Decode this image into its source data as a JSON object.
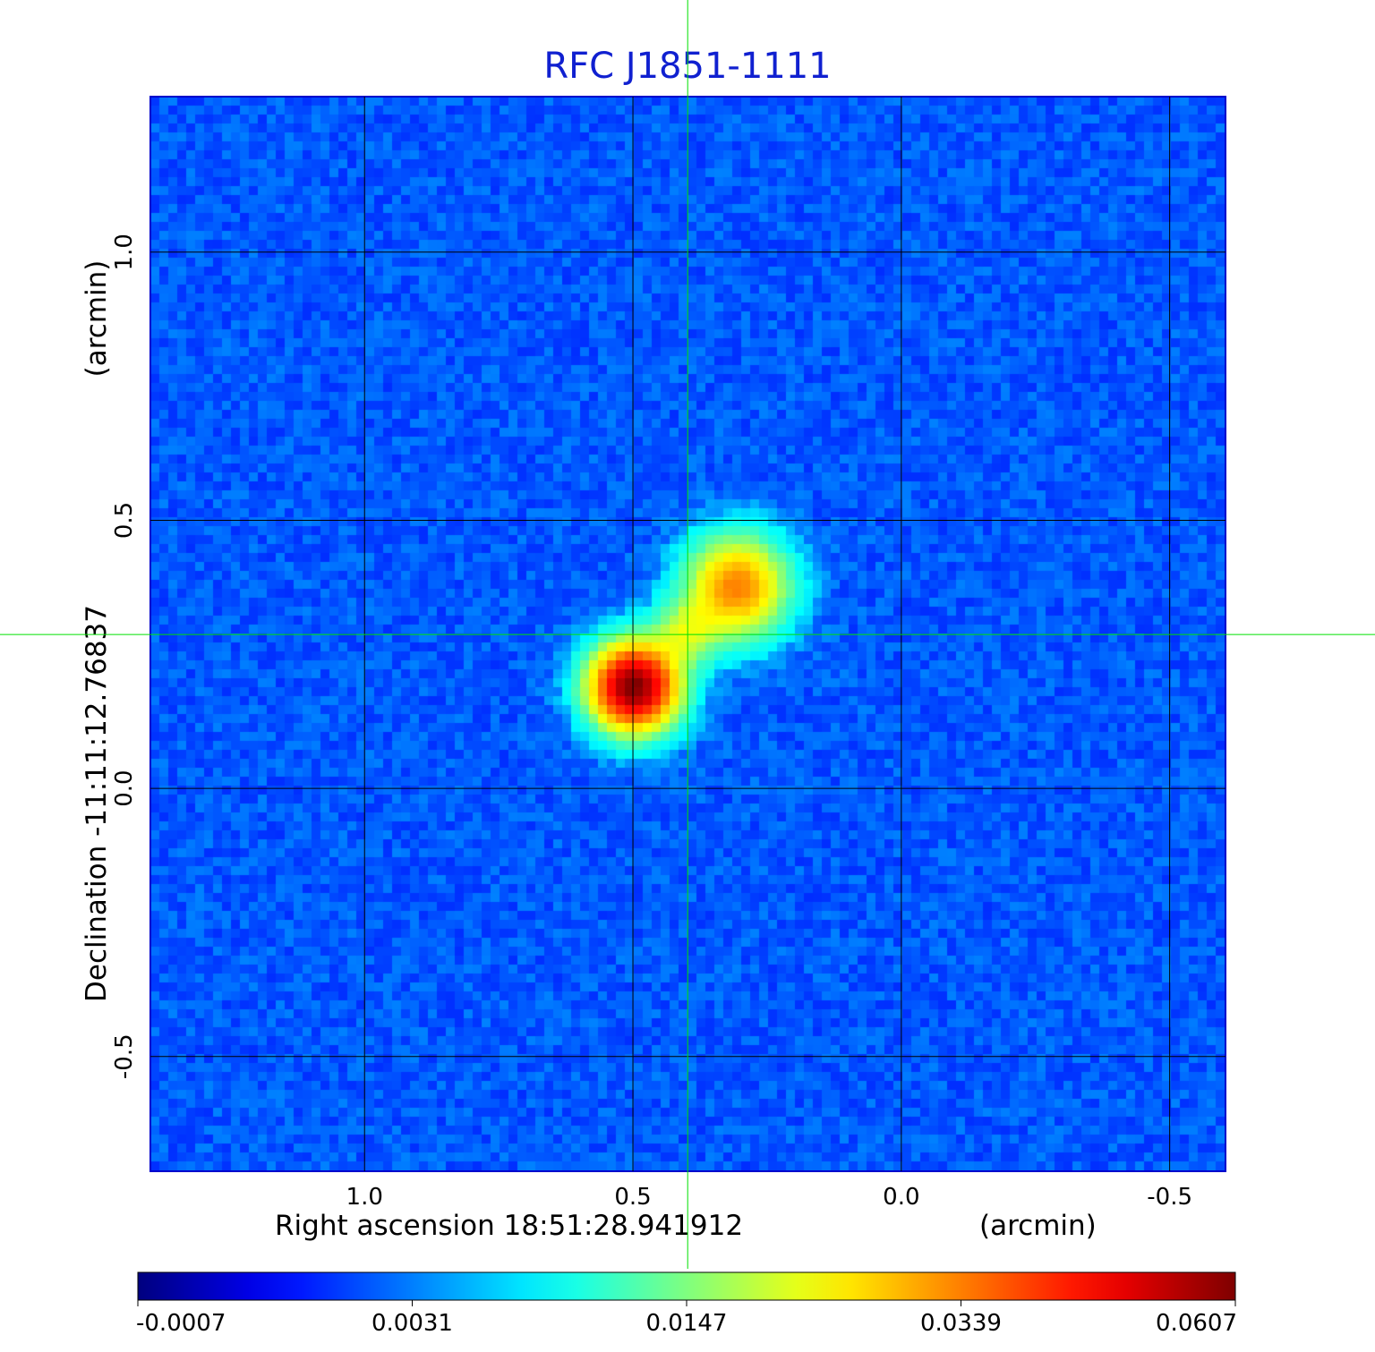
{
  "chart_data": {
    "type": "heatmap",
    "title": "RFC J1851-1111",
    "xlabel": "Right ascension  18:51:28.941912",
    "xunit": "(arcmin)",
    "ylabel": "Declination  -11:11:12.76837",
    "yunit": "(arcmin)",
    "x_ticks": [
      "1.0",
      "0.5",
      "0.0",
      "-0.5"
    ],
    "x_tick_values": [
      1.0,
      0.5,
      0.0,
      -0.5
    ],
    "y_ticks": [
      "1.0",
      "0.5",
      "0.0",
      "-0.5"
    ],
    "y_tick_values": [
      1.0,
      0.5,
      0.0,
      -0.5
    ],
    "xlim": [
      1.399,
      -0.604
    ],
    "ylim": [
      -0.714,
      1.29
    ],
    "grid": true,
    "crosshair": [
      0.398,
      0.287
    ],
    "colormap": "jet",
    "colorbar_ticks": [
      "-0.0007",
      "0.0031",
      "0.0147",
      "0.0339",
      "0.0607"
    ],
    "colorbar_values": [
      -0.0007,
      0.0031,
      0.0147,
      0.0339,
      0.0607
    ],
    "sources": [
      {
        "x": 0.497,
        "y": 0.188,
        "peak": 0.0607,
        "sigma": 0.052
      },
      {
        "x": 0.305,
        "y": 0.375,
        "peak": 0.03,
        "sigma": 0.06
      },
      {
        "x": 0.399,
        "y": 0.29,
        "peak": 0.013,
        "sigma": 0.04
      }
    ],
    "noise_level": 0.0015
  },
  "colors": {
    "title": "#1020d0",
    "grid": "#000000",
    "crosshair": "#00e000"
  }
}
